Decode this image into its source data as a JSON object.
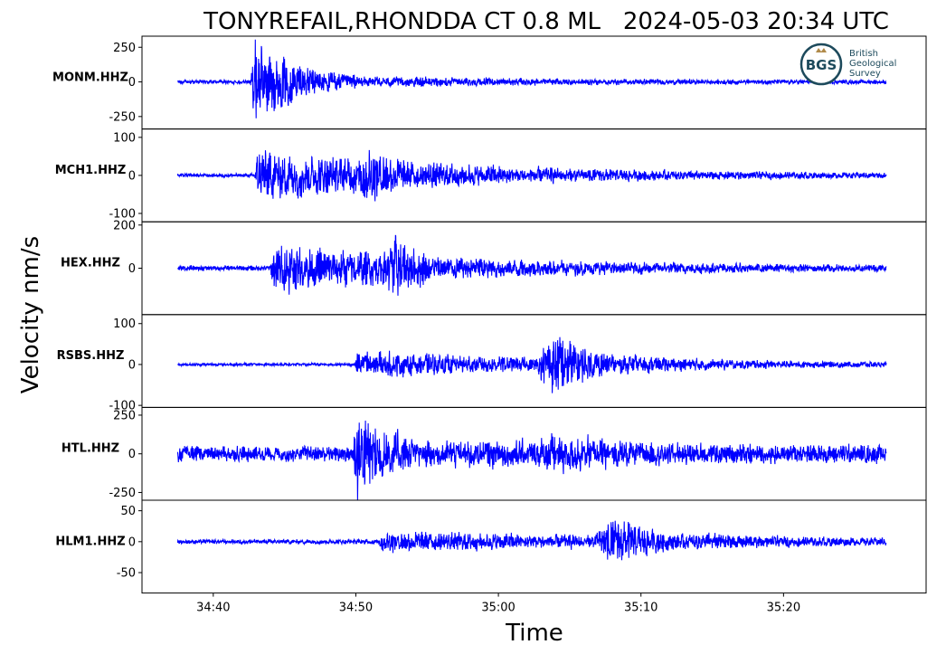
{
  "chart_data": {
    "type": "line",
    "title": "TONYREFAIL,RHONDDA CT 0.8 ML   2024-05-03 20:34 UTC",
    "xlabel": "Time",
    "ylabel": "Velocity nm/s",
    "x_range": [
      "34:35",
      "35:30"
    ],
    "x_ticks": [
      "34:40",
      "34:50",
      "35:00",
      "35:10",
      "35:20"
    ],
    "trace_time_range": [
      "34:37.5",
      "35:27.2"
    ],
    "line_color": "#0000ff",
    "logo": {
      "abbr": "BGS",
      "lines": [
        "British",
        "Geological",
        "Survey"
      ]
    },
    "series": [
      {
        "name": "MONM.HHZ",
        "ylim": [
          -340,
          330
        ],
        "yticks": [
          250,
          0,
          -250
        ],
        "yticklabels": [
          "250",
          "0",
          "-250"
        ],
        "noise": 12,
        "events": [
          {
            "t": "34:42.6",
            "amp": 290,
            "decay": 3.2,
            "rise": 0.3
          },
          {
            "t": "34:44.5",
            "amp": 55,
            "decay": 7,
            "rise": 1
          },
          {
            "t": "34:48",
            "amp": 28,
            "decay": 12,
            "rise": 2
          }
        ]
      },
      {
        "name": "MCH1.HHZ",
        "ylim": [
          -122,
          122
        ],
        "yticks": [
          100,
          0,
          -100
        ],
        "yticklabels": [
          "100",
          "0",
          "-100"
        ],
        "noise": 4,
        "events": [
          {
            "t": "34:42.9",
            "amp": 55,
            "decay": 14,
            "rise": 0.2
          },
          {
            "t": "34:49.6",
            "amp": 85,
            "decay": 3.5,
            "rise": 1.2
          },
          {
            "t": "34:55",
            "amp": 25,
            "decay": 9,
            "rise": 2
          }
        ]
      },
      {
        "name": "HEX.HHZ",
        "ylim": [
          -215,
          215
        ],
        "yticks": [
          200,
          0
        ],
        "yticklabels": [
          "200",
          "0"
        ],
        "noise": 10,
        "events": [
          {
            "t": "34:44",
            "amp": 85,
            "decay": 14,
            "rise": 0.2
          },
          {
            "t": "34:51.5",
            "amp": 190,
            "decay": 2.6,
            "rise": 1.2
          },
          {
            "t": "34:56",
            "amp": 45,
            "decay": 9,
            "rise": 2
          }
        ]
      },
      {
        "name": "RSBS.HHZ",
        "ylim": [
          -105,
          122
        ],
        "yticks": [
          100,
          0,
          -100
        ],
        "yticklabels": [
          "100",
          "0",
          "-100"
        ],
        "noise": 3,
        "events": [
          {
            "t": "34:49.9",
            "amp": 25,
            "decay": 16,
            "rise": 0.2
          },
          {
            "t": "35:02.5",
            "amp": 95,
            "decay": 3.5,
            "rise": 1.5
          },
          {
            "t": "35:07",
            "amp": 18,
            "decay": 10,
            "rise": 2
          }
        ]
      },
      {
        "name": "HTL.HHZ",
        "ylim": [
          -300,
          300
        ],
        "yticks": [
          250,
          0,
          -250
        ],
        "yticklabels": [
          "250",
          "0",
          "-250"
        ],
        "noise": 42,
        "events": [
          {
            "t": "34:49.8",
            "amp": 270,
            "decay": 2.6,
            "rise": 0.3
          },
          {
            "t": "35:02",
            "amp": 90,
            "decay": 6,
            "rise": 2
          },
          {
            "t": "34:55",
            "amp": 40,
            "decay": 18,
            "rise": 2
          }
        ]
      },
      {
        "name": "HLM1.HHZ",
        "ylim": [
          -83,
          67
        ],
        "yticks": [
          50,
          0,
          -50
        ],
        "yticklabels": [
          "50",
          "0",
          "-50"
        ],
        "noise": 3,
        "events": [
          {
            "t": "34:51.6",
            "amp": 11,
            "decay": 25,
            "rise": 0.2
          },
          {
            "t": "35:06.5",
            "amp": 45,
            "decay": 3.5,
            "rise": 1.5
          },
          {
            "t": "35:12",
            "amp": 12,
            "decay": 8,
            "rise": 2
          }
        ]
      }
    ]
  }
}
